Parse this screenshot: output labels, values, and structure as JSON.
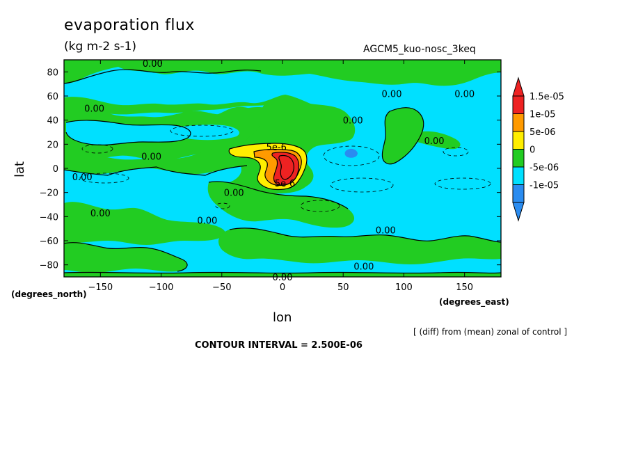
{
  "chart_data": {
    "type": "heatmap",
    "title": "evaporation flux",
    "subtitle": "(kg m-2 s-1)",
    "run_label": "AGCM5_kuo-nosc_3keq",
    "xlabel": "lon",
    "ylabel": "lat",
    "x_units": "(degrees_east)",
    "y_units": "(degrees_north)",
    "xlim": [
      -180,
      180
    ],
    "ylim": [
      -90,
      90
    ],
    "x_ticks": [
      -150,
      -100,
      -50,
      0,
      50,
      100,
      150
    ],
    "y_ticks": [
      80,
      60,
      40,
      20,
      0,
      -20,
      -40,
      -60,
      -80
    ],
    "note": "[ (diff) from (mean) zonal of control ]",
    "contour_interval": "CONTOUR INTERVAL = 2.500E-06",
    "colorbar": {
      "labels": [
        "1.5e-05",
        "1e-05",
        "5e-06",
        "0",
        "-5e-06",
        "-1e-05"
      ],
      "colors": [
        "#ee2222",
        "#ff9a00",
        "#ffee00",
        "#22cc22",
        "#00e0ff",
        "#2a8cf0"
      ]
    },
    "contour_labels": [
      {
        "text": "0.00",
        "lon": -107,
        "lat": 87
      },
      {
        "text": "0.00",
        "lon": 90,
        "lat": 62
      },
      {
        "text": "0.00",
        "lon": 150,
        "lat": 62
      },
      {
        "text": "0.00",
        "lon": -155,
        "lat": 50
      },
      {
        "text": "0.00",
        "lon": 58,
        "lat": 40
      },
      {
        "text": "0.00",
        "lon": 125,
        "lat": 23
      },
      {
        "text": "0.00",
        "lon": -108,
        "lat": 10
      },
      {
        "text": "0.00",
        "lon": -165,
        "lat": -7
      },
      {
        "text": "0.00",
        "lon": -40,
        "lat": -20
      },
      {
        "text": "0.00",
        "lon": -150,
        "lat": -37
      },
      {
        "text": "0.00",
        "lon": -62,
        "lat": -43
      },
      {
        "text": "0.00",
        "lon": 85,
        "lat": -51
      },
      {
        "text": "0.00",
        "lon": 67,
        "lat": -81
      },
      {
        "text": "0.00",
        "lon": 0,
        "lat": -90
      },
      {
        "text": "5e-6",
        "lon": -5,
        "lat": 18
      },
      {
        "text": "5e-6",
        "lon": 2,
        "lat": -12
      }
    ],
    "regions": {
      "max_center": {
        "lon": 5,
        "lat": 0,
        "value": "1.5e-05"
      }
    }
  }
}
